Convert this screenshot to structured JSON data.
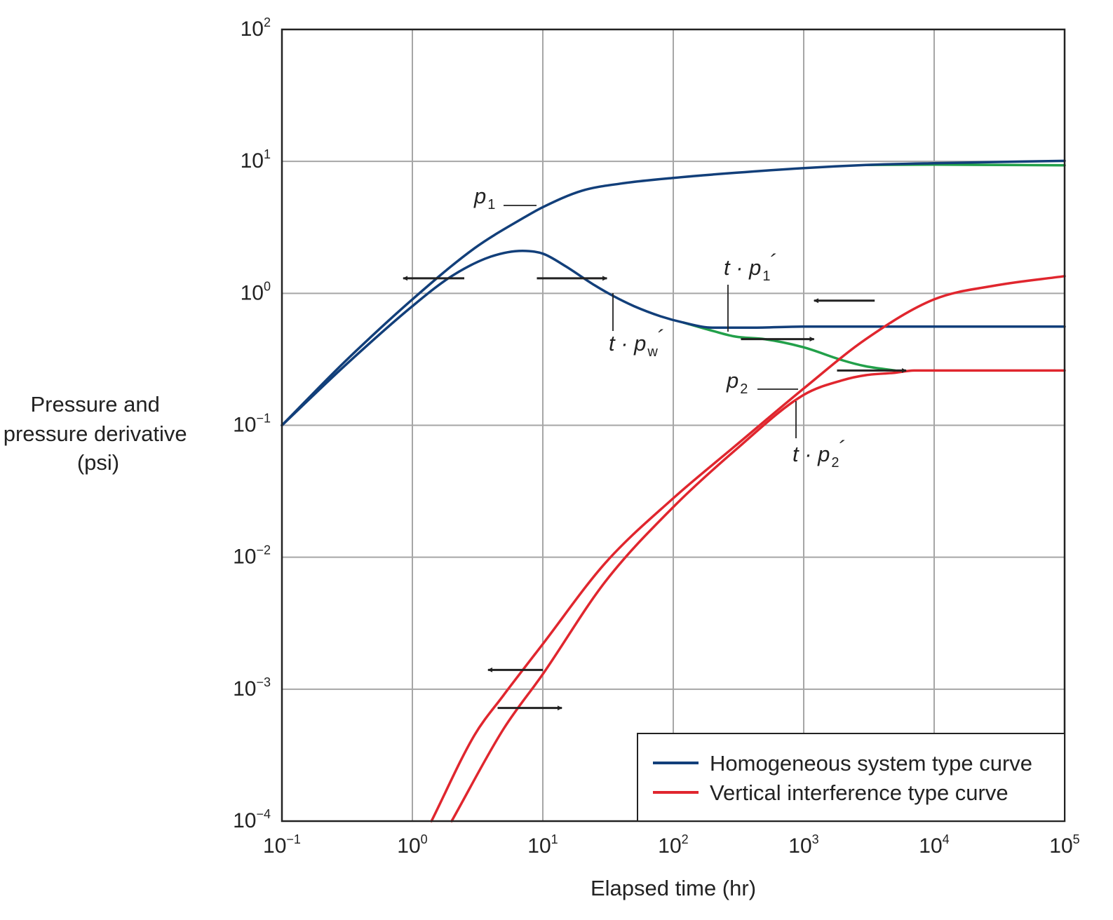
{
  "chart_data": {
    "type": "line",
    "scale": {
      "x": "log",
      "y": "log"
    },
    "xlabel": "Elapsed time (hr)",
    "ylabel": [
      "Pressure and",
      "pressure derivative",
      "(psi)"
    ],
    "xlim": [
      0.1,
      100000
    ],
    "ylim": [
      0.0001,
      100
    ],
    "grid": true,
    "x_ticks": [
      {
        "base": "10",
        "exp": "−1"
      },
      {
        "base": "10",
        "exp": "0"
      },
      {
        "base": "10",
        "exp": "1"
      },
      {
        "base": "10",
        "exp": "2"
      },
      {
        "base": "10",
        "exp": "3"
      },
      {
        "base": "10",
        "exp": "4"
      },
      {
        "base": "10",
        "exp": "5"
      }
    ],
    "y_ticks": [
      {
        "base": "10",
        "exp": "−4"
      },
      {
        "base": "10",
        "exp": "−3"
      },
      {
        "base": "10",
        "exp": "−2"
      },
      {
        "base": "10",
        "exp": "−1"
      },
      {
        "base": "10",
        "exp": "0"
      },
      {
        "base": "10",
        "exp": "1"
      },
      {
        "base": "10",
        "exp": "2"
      }
    ],
    "legend": {
      "position": "bottom-right",
      "entries": [
        {
          "label": "Homogeneous system type curve",
          "color": "#123f7a"
        },
        {
          "label": "Vertical interference type curve",
          "color": "#e0262e"
        }
      ]
    },
    "colors": {
      "homogeneous": "#123f7a",
      "interference": "#e0262e",
      "transition": "#22a04a",
      "arrow": "#222222",
      "grid": "#a6a6a6"
    },
    "series": [
      {
        "id": "p1",
        "color": "#123f7a",
        "x": [
          0.1,
          0.3,
          1,
          3,
          7,
          10,
          20,
          40,
          100,
          300,
          1000,
          3000,
          10000,
          100000
        ],
        "y": [
          0.1,
          0.3,
          0.9,
          2.2,
          3.7,
          4.5,
          6.0,
          6.8,
          7.5,
          8.2,
          8.9,
          9.4,
          9.7,
          10.1
        ]
      },
      {
        "id": "t_pw",
        "color": "#123f7a",
        "x": [
          0.1,
          0.3,
          1,
          2,
          4,
          7,
          10,
          15,
          25,
          35,
          50,
          80,
          120,
          200,
          400,
          1000,
          10000,
          100000
        ],
        "y": [
          0.1,
          0.28,
          0.8,
          1.35,
          1.9,
          2.1,
          2.0,
          1.6,
          1.15,
          0.95,
          0.8,
          0.67,
          0.6,
          0.55,
          0.55,
          0.56,
          0.56,
          0.56
        ]
      },
      {
        "id": "green_upper",
        "color": "#22a04a",
        "x": [
          3000,
          10000,
          100000
        ],
        "y": [
          9.4,
          9.45,
          9.35
        ]
      },
      {
        "id": "green_lower",
        "color": "#22a04a",
        "x": [
          120,
          200,
          300,
          500,
          1000,
          2000,
          3000,
          5000
        ],
        "y": [
          0.6,
          0.52,
          0.47,
          0.45,
          0.39,
          0.31,
          0.28,
          0.26
        ]
      },
      {
        "id": "p2",
        "color": "#e0262e",
        "x": [
          1.4,
          3,
          5,
          10,
          30,
          100,
          300,
          1000,
          3000,
          10000,
          30000,
          100000
        ],
        "y": [
          0.0001,
          0.00045,
          0.0009,
          0.0022,
          0.009,
          0.028,
          0.07,
          0.19,
          0.45,
          0.9,
          1.15,
          1.35
        ]
      },
      {
        "id": "t_p2",
        "color": "#e0262e",
        "x": [
          2,
          5,
          10,
          30,
          100,
          300,
          1000,
          2000,
          3000,
          5000,
          7000,
          100000
        ],
        "y": [
          0.0001,
          0.0005,
          0.0013,
          0.0065,
          0.024,
          0.065,
          0.17,
          0.22,
          0.24,
          0.25,
          0.26,
          0.26
        ]
      }
    ],
    "arrows": [
      {
        "x": [
          2.5,
          0.85
        ],
        "y": 1.3
      },
      {
        "x": [
          9,
          31
        ],
        "y": 1.3
      },
      {
        "x": [
          330,
          1200
        ],
        "y": 0.45
      },
      {
        "x": [
          3500,
          1200
        ],
        "y": 0.88
      },
      {
        "x": [
          1800,
          6100
        ],
        "y": 0.26
      },
      {
        "x": [
          10,
          3.8
        ],
        "y": 0.0014
      },
      {
        "x": [
          4.5,
          14
        ],
        "y": 0.00072
      }
    ],
    "annotations": [
      {
        "id": "p1",
        "base": "p",
        "sub": "1",
        "prime": ""
      },
      {
        "id": "t_pw",
        "base": "t · p",
        "sub": "w",
        "prime": "´"
      },
      {
        "id": "t_p1",
        "base": "t · p",
        "sub": "1",
        "prime": "´"
      },
      {
        "id": "p2",
        "base": "p",
        "sub": "2",
        "prime": ""
      },
      {
        "id": "t_p2",
        "base": "t · p",
        "sub": "2",
        "prime": "´"
      }
    ]
  }
}
